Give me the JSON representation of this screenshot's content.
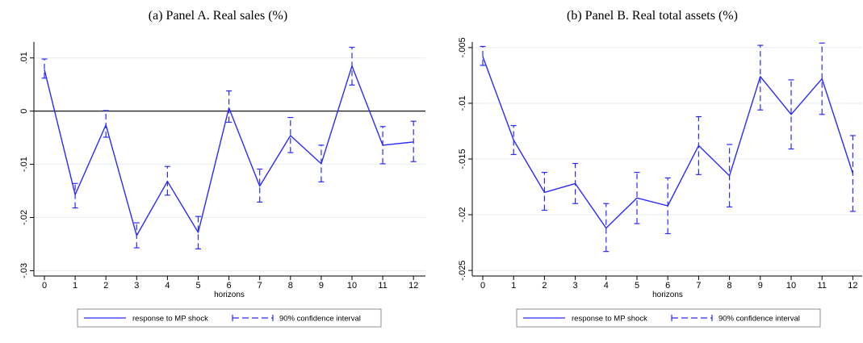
{
  "chart_data": [
    {
      "type": "line",
      "caption": "(a) Panel A. Real sales (%)",
      "xlabel": "horizons",
      "ylabel": "",
      "x": [
        0,
        1,
        2,
        3,
        4,
        5,
        6,
        7,
        8,
        9,
        10,
        11,
        12
      ],
      "x_ticks": [
        "0",
        "1",
        "2",
        "3",
        "4",
        "5",
        "6",
        "7",
        "8",
        "9",
        "10",
        "11",
        "12"
      ],
      "ylim": [
        -0.031,
        0.013
      ],
      "y_ticks": [
        0.01,
        0,
        -0.01,
        -0.02,
        -0.03
      ],
      "y_tick_labels": [
        ".01",
        "0",
        "-.01",
        "-.02",
        "-.03"
      ],
      "zero_line": true,
      "grid": true,
      "series": [
        {
          "name": "response to MP shock",
          "values": [
            0.0078,
            -0.0157,
            -0.0026,
            -0.0234,
            -0.0132,
            -0.0228,
            0.0006,
            -0.0141,
            -0.0046,
            -0.0099,
            0.0085,
            -0.0064,
            -0.0058
          ]
        }
      ],
      "ci": {
        "name": "90% confidence interval",
        "lower": [
          0.0062,
          -0.0182,
          -0.0049,
          -0.0257,
          -0.0158,
          -0.0259,
          -0.0021,
          -0.0171,
          -0.0078,
          -0.0133,
          0.0049,
          -0.0099,
          -0.0095
        ],
        "upper": [
          0.0098,
          -0.0136,
          0.0001,
          -0.021,
          -0.0104,
          -0.0198,
          0.0038,
          -0.0109,
          -0.0012,
          -0.0064,
          0.012,
          -0.0029,
          -0.0019
        ]
      },
      "legend": [
        "response to MP shock",
        "90% confidence interval"
      ],
      "legend_position": "bottom"
    },
    {
      "type": "line",
      "caption": "(b) Panel B. Real total assets (%)",
      "xlabel": "horizons",
      "ylabel": "",
      "x": [
        0,
        1,
        2,
        3,
        4,
        5,
        6,
        7,
        8,
        9,
        10,
        11,
        12
      ],
      "x_ticks": [
        "0",
        "1",
        "2",
        "3",
        "4",
        "5",
        "6",
        "7",
        "8",
        "9",
        "10",
        "11",
        "12"
      ],
      "ylim": [
        -0.0255,
        -0.0045
      ],
      "y_ticks": [
        -0.005,
        -0.01,
        -0.015,
        -0.02,
        -0.025
      ],
      "y_tick_labels": [
        "-.005",
        "-.01",
        "-.015",
        "-.02",
        "-.025"
      ],
      "zero_line": false,
      "grid": true,
      "series": [
        {
          "name": "response to MP shock",
          "values": [
            -0.0058,
            -0.0133,
            -0.018,
            -0.0172,
            -0.0212,
            -0.0185,
            -0.0192,
            -0.0138,
            -0.0165,
            -0.0076,
            -0.011,
            -0.0078,
            -0.0163
          ]
        }
      ],
      "ci": {
        "name": "90% confidence interval",
        "lower": [
          -0.0066,
          -0.0146,
          -0.0196,
          -0.019,
          -0.0233,
          -0.0208,
          -0.0217,
          -0.0164,
          -0.0193,
          -0.0106,
          -0.0141,
          -0.011,
          -0.0197
        ],
        "upper": [
          -0.0049,
          -0.012,
          -0.0162,
          -0.0154,
          -0.019,
          -0.0162,
          -0.0167,
          -0.0112,
          -0.0137,
          -0.0048,
          -0.0079,
          -0.0046,
          -0.0129
        ]
      },
      "legend": [
        "response to MP shock",
        "90% confidence interval"
      ],
      "legend_position": "bottom"
    }
  ],
  "colors": {
    "series_line": "#2b2bff",
    "axis": "#000000",
    "grid": "#e6eef3",
    "zero_line": "#000000",
    "legend_border": "#777777"
  }
}
